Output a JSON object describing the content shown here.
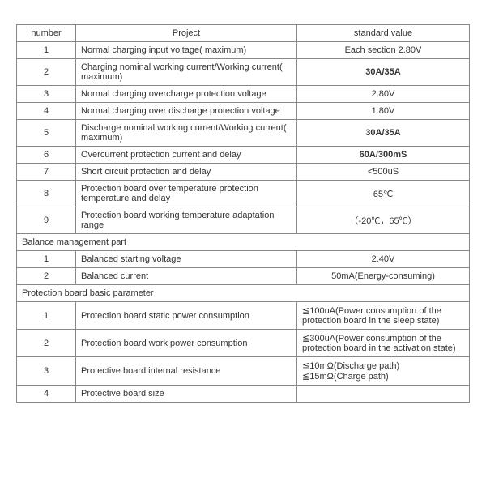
{
  "headers": {
    "number": "number",
    "project": "Project",
    "value": "standard value"
  },
  "main": {
    "r1": {
      "num": "1",
      "project": "Normal charging input voltage( maximum)",
      "value": "Each section 2.80V"
    },
    "r2": {
      "num": "2",
      "project": "Charging nominal working current/Working current( maximum)",
      "value": "30A/35A"
    },
    "r3": {
      "num": "3",
      "project": "Normal charging overcharge protection voltage",
      "value": "2.80V"
    },
    "r4": {
      "num": "4",
      "project": "Normal charging over discharge protection voltage",
      "value": "1.80V"
    },
    "r5": {
      "num": "5",
      "project": "Discharge nominal working current/Working current( maximum)",
      "value": "30A/35A"
    },
    "r6": {
      "num": "6",
      "project": "Overcurrent protection current and delay",
      "value": "60A/300mS"
    },
    "r7": {
      "num": "7",
      "project": "Short circuit protection and delay",
      "value": "<500uS"
    },
    "r8": {
      "num": "8",
      "project": "Protection board over temperature protection temperature and delay",
      "value": "65℃"
    },
    "r9": {
      "num": "9",
      "project": "Protection board working temperature adaptation range",
      "value": "（-20℃，65℃）"
    }
  },
  "balance": {
    "title": "Balance management part",
    "r1": {
      "num": "1",
      "project": "Balanced starting voltage",
      "value": "2.40V"
    },
    "r2": {
      "num": "2",
      "project": "Balanced current",
      "value": "50mA(Energy-consuming)"
    }
  },
  "basic": {
    "title": "Protection board basic parameter",
    "r1": {
      "num": "1",
      "project": "Protection board static power consumption",
      "value": "≦100uA(Power consumption of the protection board in the sleep state)"
    },
    "r2": {
      "num": "2",
      "project": "Protection board work power consumption",
      "value": "≦300uA(Power consumption of the protection board in the activation state)"
    },
    "r3": {
      "num": "3",
      "project": "Protective board internal resistance",
      "value": "≦10mΩ(Discharge path)\n≦15mΩ(Charge path)"
    },
    "r4": {
      "num": "4",
      "project": "Protective board size",
      "value": ""
    }
  }
}
